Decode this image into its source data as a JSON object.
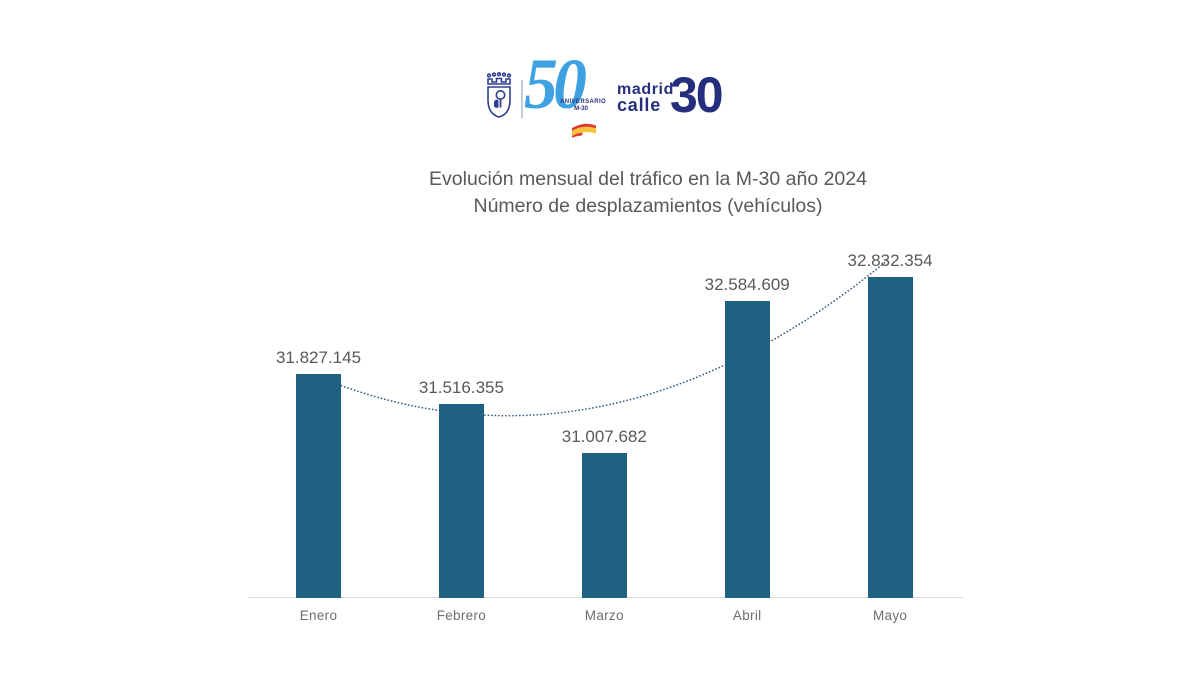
{
  "logo": {
    "crest_icon": "madrid-coat-of-arms",
    "anniversary_number": "50",
    "anniversary_label": "ANIVERSARIO",
    "anniversary_sub": "M-30",
    "flag_icon": "spain-flag",
    "brand_line1": "madrid",
    "brand_line2": "calle",
    "brand_number": "30",
    "colors": {
      "navy": "#262f7e",
      "crest_blue": "#2f3f8f",
      "light_blue": "#3ea2e2",
      "flag_red": "#dd3b2d",
      "flag_yellow": "#f8c33a"
    }
  },
  "chart_data": {
    "type": "bar",
    "title": "Evolución mensual del tráfico en la M-30 año 2024",
    "subtitle": "Número de desplazamientos (vehículos)",
    "categories": [
      "Enero",
      "Febrero",
      "Marzo",
      "Abril",
      "Mayo"
    ],
    "values": [
      31827145,
      31516355,
      31007682,
      32584609,
      32832354
    ],
    "display_values": [
      "31.827.145",
      "31.516.355",
      "31.007.682",
      "32.584.609",
      "32.832.354"
    ],
    "ylim": [
      29500000,
      33320000
    ],
    "grid": false,
    "legend": false,
    "bar_color": "#1e6183",
    "axis_line_color": "#dcdcdc",
    "label_color": "#595959",
    "trendline": {
      "type": "polynomial",
      "order": 2,
      "style": "dotted",
      "color": "#406080"
    }
  }
}
